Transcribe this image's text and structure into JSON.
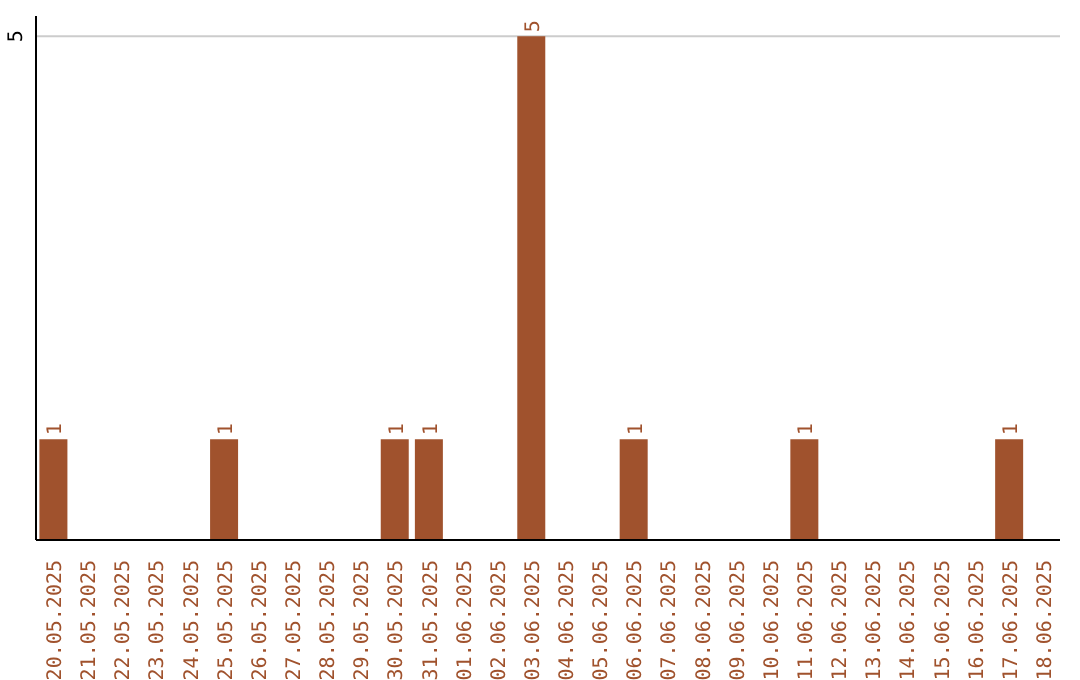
{
  "chart_data": {
    "type": "bar",
    "categories": [
      "20.05.2025",
      "21.05.2025",
      "22.05.2025",
      "23.05.2025",
      "24.05.2025",
      "25.05.2025",
      "26.05.2025",
      "27.05.2025",
      "28.05.2025",
      "29.05.2025",
      "30.05.2025",
      "31.05.2025",
      "01.06.2025",
      "02.06.2025",
      "03.06.2025",
      "04.06.2025",
      "05.06.2025",
      "06.06.2025",
      "07.06.2025",
      "08.06.2025",
      "09.06.2025",
      "10.06.2025",
      "11.06.2025",
      "12.06.2025",
      "13.06.2025",
      "14.06.2025",
      "15.06.2025",
      "16.06.2025",
      "17.06.2025",
      "18.06.2025"
    ],
    "values": [
      1,
      0,
      0,
      0,
      0,
      1,
      0,
      0,
      0,
      0,
      1,
      1,
      0,
      0,
      5,
      0,
      0,
      1,
      0,
      0,
      0,
      0,
      1,
      0,
      0,
      0,
      0,
      0,
      1,
      0
    ],
    "value_labels": [
      "1",
      null,
      null,
      null,
      null,
      "1",
      null,
      null,
      null,
      null,
      "1",
      "1",
      null,
      null,
      "5",
      null,
      null,
      "1",
      null,
      null,
      null,
      null,
      "1",
      null,
      null,
      null,
      null,
      null,
      "1",
      null
    ],
    "color": "#a0522d",
    "ylim": [
      0,
      5.2
    ],
    "yticks": [
      5
    ],
    "grid": "y"
  }
}
